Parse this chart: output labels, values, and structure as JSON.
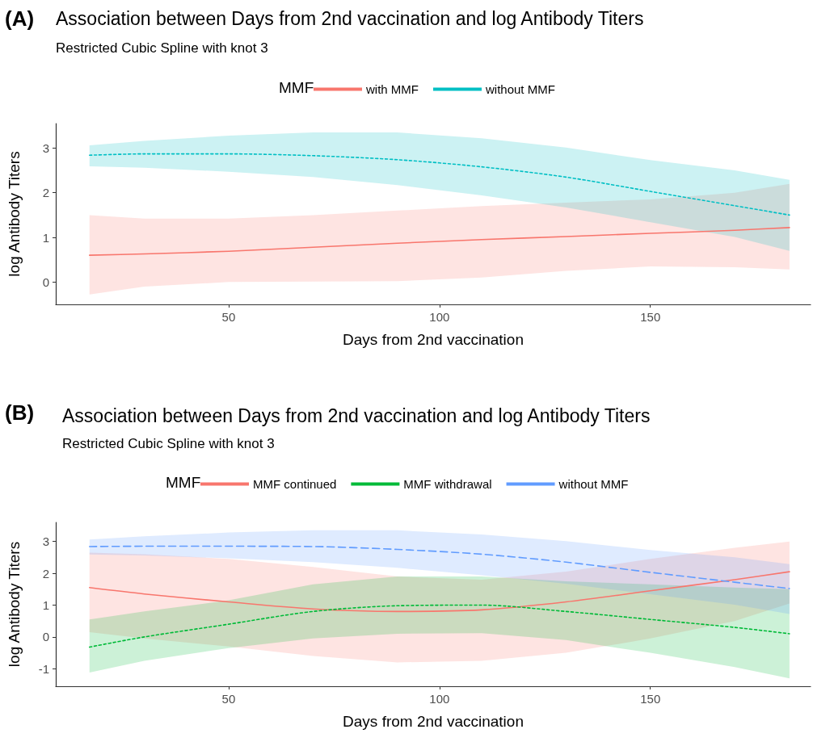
{
  "chart_data": [
    {
      "type": "line",
      "title": "Association between Days from 2nd vaccination and log Antibody Titers",
      "subtitle": "Restricted Cubic Spline with knot 3",
      "xlabel": "Days from 2nd vaccination",
      "ylabel": "log Antibody Titers",
      "legend_title": "MMF",
      "legend": "top",
      "annotations": [
        "(A)"
      ],
      "xlim": [
        9,
        188
      ],
      "xticks": [
        50,
        100,
        150
      ],
      "ylim": [
        -0.5,
        3.55
      ],
      "yticks": [
        0,
        1,
        2,
        3
      ],
      "grid": false,
      "x": [
        17,
        30,
        50,
        70,
        90,
        110,
        130,
        150,
        170,
        183
      ],
      "series": [
        {
          "name": "with MMF",
          "color": "#f8766d",
          "line_style": "solid",
          "values": [
            0.6,
            0.63,
            0.69,
            0.78,
            0.87,
            0.95,
            1.02,
            1.09,
            1.16,
            1.22
          ],
          "lower": [
            -0.28,
            -0.1,
            0.0,
            0.01,
            0.02,
            0.1,
            0.25,
            0.35,
            0.33,
            0.28
          ],
          "upper": [
            1.5,
            1.42,
            1.42,
            1.5,
            1.6,
            1.7,
            1.78,
            1.85,
            2.0,
            2.2
          ]
        },
        {
          "name": "without MMF",
          "color": "#00bfc4",
          "line_style": "dotted",
          "values": [
            2.84,
            2.87,
            2.87,
            2.83,
            2.74,
            2.58,
            2.35,
            2.03,
            1.71,
            1.5
          ],
          "lower": [
            2.59,
            2.56,
            2.47,
            2.35,
            2.17,
            1.94,
            1.67,
            1.34,
            1.01,
            0.7
          ],
          "upper": [
            3.06,
            3.16,
            3.28,
            3.35,
            3.35,
            3.22,
            3.01,
            2.73,
            2.5,
            2.29
          ]
        }
      ]
    },
    {
      "type": "line",
      "title": "Association between Days from 2nd vaccination and log Antibody Titers",
      "subtitle": "Restricted Cubic Spline with knot 3",
      "xlabel": "Days from 2nd vaccination",
      "ylabel": "log Antibody Titers",
      "legend_title": "MMF",
      "legend": "top",
      "annotations": [
        "(B)"
      ],
      "xlim": [
        9,
        188
      ],
      "xticks": [
        50,
        100,
        150
      ],
      "ylim": [
        -1.55,
        3.6
      ],
      "yticks": [
        -1,
        0,
        1,
        2,
        3
      ],
      "grid": false,
      "x": [
        17,
        30,
        50,
        70,
        90,
        110,
        130,
        150,
        170,
        183
      ],
      "series": [
        {
          "name": "MMF continued",
          "color": "#f8766d",
          "line_style": "solid",
          "values": [
            1.55,
            1.35,
            1.1,
            0.88,
            0.8,
            0.85,
            1.1,
            1.45,
            1.8,
            2.05
          ],
          "lower": [
            0.15,
            -0.05,
            -0.3,
            -0.6,
            -0.8,
            -0.75,
            -0.5,
            -0.05,
            0.5,
            1.05
          ],
          "upper": [
            2.65,
            2.6,
            2.45,
            2.2,
            1.9,
            1.8,
            2.05,
            2.45,
            2.8,
            3.0
          ]
        },
        {
          "name": "MMF withdrawal",
          "color": "#00ba38",
          "line_style": "dotted",
          "values": [
            -0.32,
            0.0,
            0.4,
            0.8,
            0.98,
            1.0,
            0.8,
            0.55,
            0.3,
            0.1
          ],
          "lower": [
            -1.12,
            -0.75,
            -0.35,
            -0.05,
            0.1,
            0.12,
            -0.1,
            -0.5,
            -0.95,
            -1.3
          ],
          "upper": [
            0.55,
            0.8,
            1.15,
            1.65,
            1.9,
            1.9,
            1.75,
            1.65,
            1.55,
            1.5
          ]
        },
        {
          "name": "without MMF",
          "color": "#619cff",
          "line_style": "dashed",
          "values": [
            2.84,
            2.85,
            2.85,
            2.84,
            2.75,
            2.6,
            2.35,
            2.03,
            1.72,
            1.52
          ],
          "lower": [
            2.59,
            2.56,
            2.47,
            2.35,
            2.17,
            1.94,
            1.67,
            1.34,
            1.01,
            0.72
          ],
          "upper": [
            3.06,
            3.16,
            3.28,
            3.35,
            3.35,
            3.22,
            3.01,
            2.73,
            2.5,
            2.29
          ]
        }
      ]
    }
  ]
}
